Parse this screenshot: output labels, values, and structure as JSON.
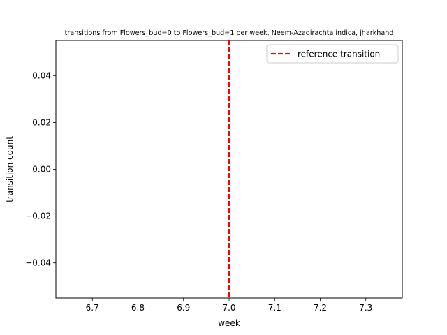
{
  "chart_data": {
    "type": "line",
    "title": "transitions from Flowers_bud=0 to Flowers_bud=1 per week, Neem-Azadirachta indica, jharkhand",
    "xlabel": "week",
    "ylabel": "transition count",
    "xlim": [
      6.62,
      7.38
    ],
    "ylim": [
      -0.055,
      0.055
    ],
    "xticks": [
      6.7,
      6.8,
      6.9,
      7.0,
      7.1,
      7.2,
      7.3
    ],
    "xtick_labels": [
      "6.7",
      "6.8",
      "6.9",
      "7.0",
      "7.1",
      "7.2",
      "7.3"
    ],
    "yticks": [
      0.04,
      0.02,
      0.0,
      -0.02,
      -0.04
    ],
    "ytick_labels": [
      "0.04",
      "0.02",
      "0.00",
      "−0.02",
      "−0.04"
    ],
    "grid": false,
    "legend_position": "top-right",
    "series": [],
    "reference_lines": [
      {
        "orientation": "vertical",
        "x": 7.0,
        "label": "reference transition",
        "color": "#ff0000",
        "style": "dashed"
      }
    ],
    "legend": [
      {
        "label": "reference transition",
        "color": "#ff0000",
        "style": "dashed"
      }
    ]
  }
}
